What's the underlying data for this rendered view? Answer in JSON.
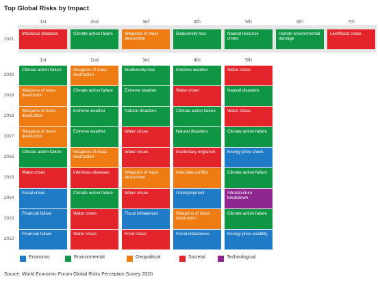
{
  "title": "Top Global Risks by Impact",
  "ranks": [
    "1st",
    "2nd",
    "3rd",
    "4th",
    "5th",
    "6th",
    "7th"
  ],
  "row2021": {
    "year": "2021",
    "cells": [
      {
        "label": "Infectious diseases",
        "category": "societal"
      },
      {
        "label": "Climate action failure",
        "category": "environmental"
      },
      {
        "label": "Weapons of mass destruction",
        "category": "geopolitical"
      },
      {
        "label": "Biodiversity loss",
        "category": "environmental"
      },
      {
        "label": "Natural resource crises",
        "category": "environmental"
      },
      {
        "label": "Human environmental damage",
        "category": "environmental"
      },
      {
        "label": "Livelihood crises",
        "category": "societal"
      }
    ]
  },
  "rows": [
    {
      "year": "2020",
      "cells": [
        {
          "label": "Climate action failure",
          "category": "environmental"
        },
        {
          "label": "Weapons of mass destruction",
          "category": "geopolitical"
        },
        {
          "label": "Biodiversity loss",
          "category": "environmental"
        },
        {
          "label": "Extreme weather",
          "category": "environmental"
        },
        {
          "label": "Water crises",
          "category": "societal"
        }
      ]
    },
    {
      "year": "2019",
      "cells": [
        {
          "label": "Weapons of mass destruction",
          "category": "geopolitical"
        },
        {
          "label": "Climate action failure",
          "category": "environmental"
        },
        {
          "label": "Extreme weather",
          "category": "environmental"
        },
        {
          "label": "Water crises",
          "category": "societal"
        },
        {
          "label": "Natural disasters",
          "category": "environmental"
        }
      ]
    },
    {
      "year": "2018",
      "cells": [
        {
          "label": "Weapons of mass destruction",
          "category": "geopolitical"
        },
        {
          "label": "Extreme weather",
          "category": "environmental"
        },
        {
          "label": "Natural disasters",
          "category": "environmental"
        },
        {
          "label": "Climate action failure",
          "category": "environmental"
        },
        {
          "label": "Water crises",
          "category": "societal"
        }
      ]
    },
    {
      "year": "2017",
      "cells": [
        {
          "label": "Weapons of mass destruction",
          "category": "geopolitical"
        },
        {
          "label": "Extreme weather",
          "category": "environmental"
        },
        {
          "label": "Water crises",
          "category": "societal"
        },
        {
          "label": "Natural disasters",
          "category": "environmental"
        },
        {
          "label": "Climate action failure",
          "category": "environmental"
        }
      ]
    },
    {
      "year": "2016",
      "cells": [
        {
          "label": "Climate action failure",
          "category": "environmental"
        },
        {
          "label": "Weapons of mass destruction",
          "category": "geopolitical"
        },
        {
          "label": "Water crises",
          "category": "societal"
        },
        {
          "label": "Involuntary migration",
          "category": "societal"
        },
        {
          "label": "Energy price shock",
          "category": "economic"
        }
      ]
    },
    {
      "year": "2015",
      "cells": [
        {
          "label": "Water crises",
          "category": "societal"
        },
        {
          "label": "Infectious diseases",
          "category": "societal"
        },
        {
          "label": "Weapons of mass destruction",
          "category": "geopolitical"
        },
        {
          "label": "Interstate conflict",
          "category": "geopolitical"
        },
        {
          "label": "Climate action failure",
          "category": "environmental"
        }
      ]
    },
    {
      "year": "2014",
      "cells": [
        {
          "label": "Fiscal crises",
          "category": "economic"
        },
        {
          "label": "Climate action failure",
          "category": "environmental"
        },
        {
          "label": "Water crises",
          "category": "societal"
        },
        {
          "label": "Unemployment",
          "category": "economic"
        },
        {
          "label": "Infrastructure breakdown",
          "category": "technological"
        }
      ]
    },
    {
      "year": "2013",
      "cells": [
        {
          "label": "Financial failure",
          "category": "economic"
        },
        {
          "label": "Water crises",
          "category": "societal"
        },
        {
          "label": "Fiscal imbalances",
          "category": "economic"
        },
        {
          "label": "Weapons of mass destruction",
          "category": "geopolitical"
        },
        {
          "label": "Climate action failure",
          "category": "environmental"
        }
      ]
    },
    {
      "year": "2012",
      "cells": [
        {
          "label": "Financial failure",
          "category": "economic"
        },
        {
          "label": "Water crises",
          "category": "societal"
        },
        {
          "label": "Food crises",
          "category": "societal"
        },
        {
          "label": "Fiscal imbalances",
          "category": "economic"
        },
        {
          "label": "Energy price volatility",
          "category": "economic"
        }
      ]
    }
  ],
  "legend": [
    {
      "key": "economic",
      "label": "Economic",
      "color": "#1f7bc6"
    },
    {
      "key": "environmental",
      "label": "Environmental",
      "color": "#0e9644"
    },
    {
      "key": "geopolitical",
      "label": "Geopolitical",
      "color": "#ef7c13"
    },
    {
      "key": "societal",
      "label": "Societal",
      "color": "#e4242b"
    },
    {
      "key": "technological",
      "label": "Technological",
      "color": "#8e268f"
    }
  ],
  "source": "Source: World Economic Forum Global Risks Perception Survey 2020"
}
